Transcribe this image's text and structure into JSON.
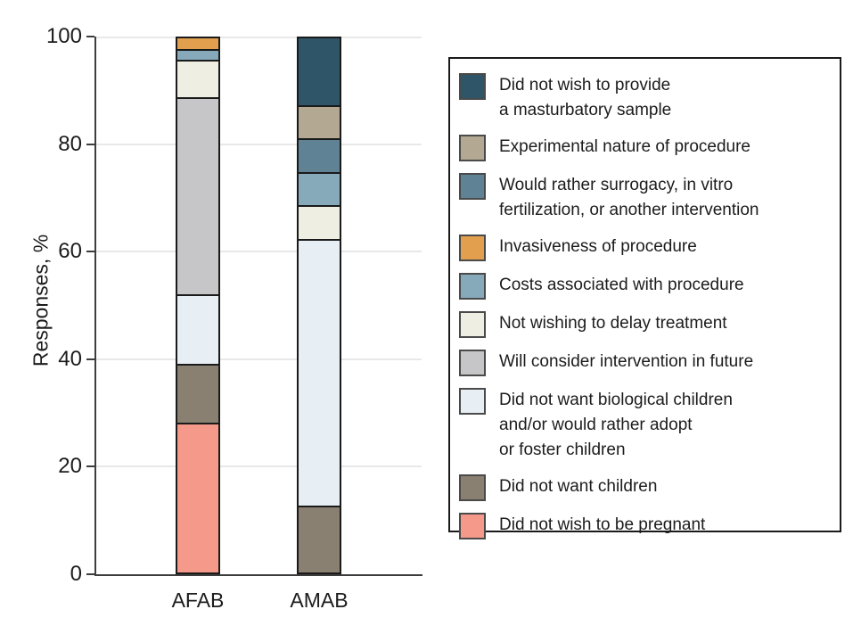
{
  "figure": {
    "y_axis_title": "Responses, %"
  },
  "colors": {
    "background": "#ffffff",
    "axis": "#3d3d3d",
    "gridline": "#e8e8e8",
    "bar_outline": "#1a1a1a",
    "legend_border": "#1a1a1a",
    "text": "#1c1c1c"
  },
  "chart_data": {
    "type": "bar",
    "stacked": true,
    "title": "",
    "xlabel": "",
    "ylabel": "Responses, %",
    "ylim": [
      0,
      100
    ],
    "yticks": [
      0,
      20,
      40,
      60,
      80,
      100
    ],
    "grid": "horizontal",
    "legend_position": "right",
    "categories": [
      "AFAB",
      "AMAB"
    ],
    "series": [
      {
        "name": "Did not wish to provide a masturbatory sample",
        "legend_lines": [
          "Did not wish to provide",
          "a masturbatory sample"
        ],
        "color": "#2f5668",
        "values": [
          0,
          12.5
        ]
      },
      {
        "name": "Experimental nature of procedure",
        "legend_lines": [
          "Experimental nature of procedure"
        ],
        "color": "#b3a992",
        "values": [
          0,
          6.25
        ]
      },
      {
        "name": "Would rather surrogacy, in vitro fertilization, or another intervention",
        "legend_lines": [
          "Would rather surrogacy, in vitro",
          "fertilization, or another intervention"
        ],
        "color": "#5f8394",
        "values": [
          0,
          6.25
        ]
      },
      {
        "name": "Invasiveness of procedure",
        "legend_lines": [
          "Invasiveness of procedure"
        ],
        "color": "#e2a04f",
        "values": [
          2,
          0
        ]
      },
      {
        "name": "Costs associated with procedure",
        "legend_lines": [
          "Costs associated with procedure"
        ],
        "color": "#86aaba",
        "values": [
          2,
          6.25
        ]
      },
      {
        "name": "Not wishing to delay treatment",
        "legend_lines": [
          "Not wishing to delay treatment"
        ],
        "color": "#efeee2",
        "values": [
          7,
          6.25
        ]
      },
      {
        "name": "Will consider intervention in future",
        "legend_lines": [
          "Will consider intervention in future"
        ],
        "color": "#c6c6c8",
        "values": [
          37,
          0
        ]
      },
      {
        "name": "Did not want biological children and/or would rather adopt or foster children",
        "legend_lines": [
          "Did not want biological children",
          "and/or would rather adopt",
          "or foster children"
        ],
        "color": "#e8eff4",
        "values": [
          13,
          50
        ]
      },
      {
        "name": "Did not want children",
        "legend_lines": [
          "Did not want children"
        ],
        "color": "#8a8071",
        "values": [
          11,
          12.5
        ]
      },
      {
        "name": "Did not wish to be pregnant",
        "legend_lines": [
          "Did not wish to be pregnant"
        ],
        "color": "#f5998a",
        "values": [
          28,
          0
        ]
      }
    ],
    "notes": "Stacked 100% bars; stacking order bottom-to-top is the reverse of legend order; zero-value segments are absent from a bar."
  }
}
